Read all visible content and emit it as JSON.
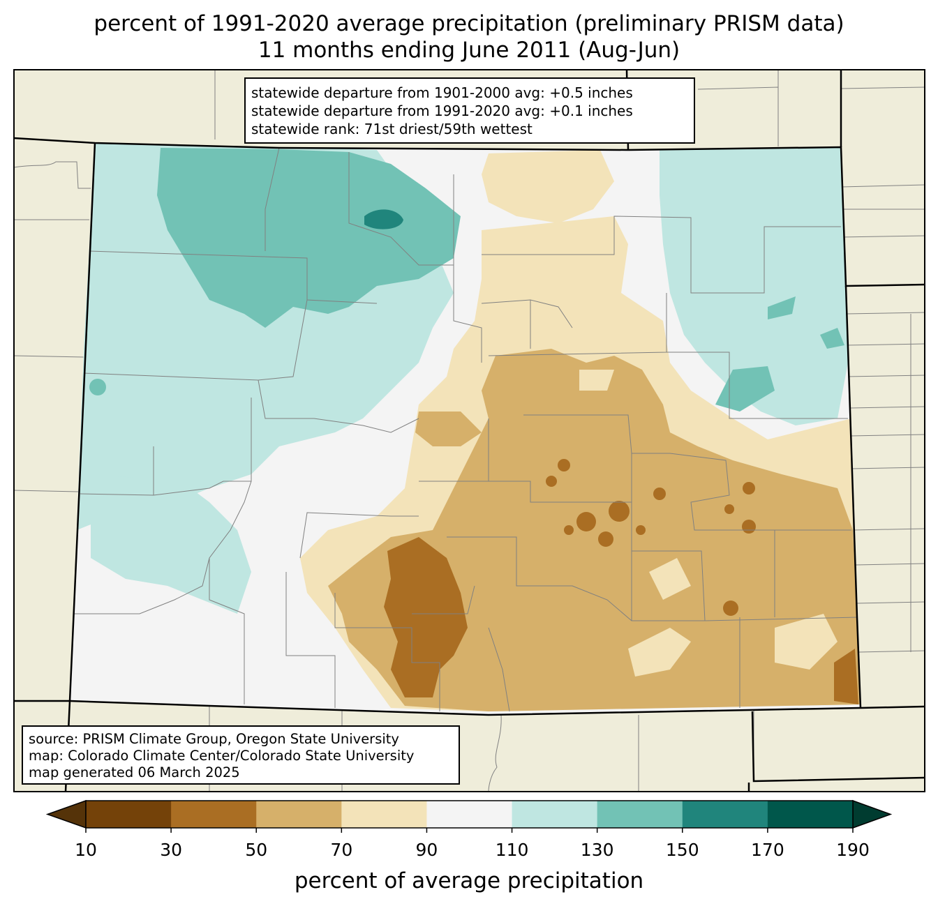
{
  "title": {
    "line1": "percent of 1991-2020 average precipitation (preliminary PRISM data)",
    "line2": "11 months ending June 2011 (Aug-Jun)"
  },
  "stats": {
    "line1": "statewide departure from 1901-2000 avg: +0.5 inches",
    "line2": "statewide departure from 1991-2020 avg: +0.1 inches",
    "line3": "statewide rank: 71st driest/59th wettest"
  },
  "source": {
    "line1": "source: PRISM Climate Group, Oregon State University",
    "line2": "map: Colorado Climate Center/Colorado State University",
    "line3": "map generated 06 March 2025"
  },
  "colorbar": {
    "label": "percent of average precipitation",
    "ticks": [
      "10",
      "30",
      "50",
      "70",
      "90",
      "110",
      "130",
      "150",
      "170",
      "190"
    ],
    "bins": [
      {
        "range": "10-30",
        "color": "#744209"
      },
      {
        "range": "30-50",
        "color": "#aa6e23"
      },
      {
        "range": "50-70",
        "color": "#d6b06a"
      },
      {
        "range": "70-90",
        "color": "#f3e3b9"
      },
      {
        "range": "90-110",
        "color": "#f4f4f4"
      },
      {
        "range": "110-130",
        "color": "#bfe6e1"
      },
      {
        "range": "130-150",
        "color": "#72c2b5"
      },
      {
        "range": "150-170",
        "color": "#20857c"
      },
      {
        "range": "170-190",
        "color": "#00574b"
      }
    ],
    "under_color": "#553309",
    "over_color": "#003c30"
  },
  "colors": {
    "land_outside": "#efedda",
    "state_border": "#000000",
    "county_border": "#808080"
  }
}
